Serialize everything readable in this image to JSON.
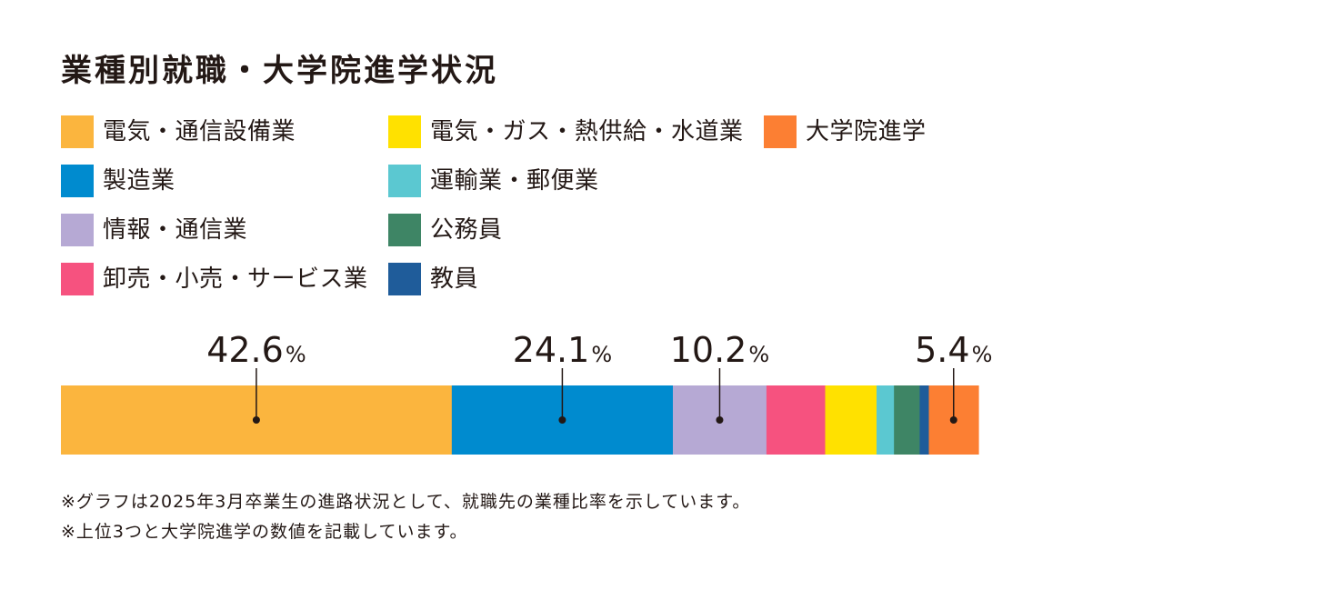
{
  "title": "業種別就職・大学院進学状況",
  "legend": [
    {
      "label": "電気・通信設備業",
      "color": "#FBB53E"
    },
    {
      "label": "製造業",
      "color": "#008BCF"
    },
    {
      "label": "情報・通信業",
      "color": "#B6A9D4"
    },
    {
      "label": "卸売・小売・サービス業",
      "color": "#F6527F"
    },
    {
      "label": "電気・ガス・熱供給・水道業",
      "color": "#FFE100"
    },
    {
      "label": "運輸業・郵便業",
      "color": "#5BC8D1"
    },
    {
      "label": "公務員",
      "color": "#3E8565"
    },
    {
      "label": "教員",
      "color": "#1F5C9A"
    },
    {
      "label": "大学院進学",
      "color": "#FC7F33"
    }
  ],
  "chart_data": {
    "type": "bar",
    "orientation": "horizontal-stacked",
    "title": "業種別就職・大学院進学状況",
    "categories": [
      "電気・通信設備業",
      "製造業",
      "情報・通信業",
      "卸売・小売・サービス業",
      "電気・ガス・熱供給・水道業",
      "運輸業・郵便業",
      "公務員",
      "教員",
      "大学院進学"
    ],
    "values": [
      42.6,
      24.1,
      10.2,
      6.4,
      5.6,
      1.9,
      2.8,
      1.0,
      5.4
    ],
    "colors": [
      "#FBB53E",
      "#008BCF",
      "#B6A9D4",
      "#F6527F",
      "#FFE100",
      "#5BC8D1",
      "#3E8565",
      "#1F5C9A",
      "#FC7F33"
    ],
    "labeled": [
      {
        "index": 0,
        "value": "42.6",
        "unit": "%"
      },
      {
        "index": 1,
        "value": "24.1",
        "unit": "%"
      },
      {
        "index": 2,
        "value": "10.2",
        "unit": "%"
      },
      {
        "index": 8,
        "value": "5.4",
        "unit": "%"
      }
    ],
    "xlim": [
      0,
      100
    ]
  },
  "notes": [
    "※グラフは2025年3月卒業生の進路状況として、就職先の業種比率を示しています。",
    "※上位3つと大学院進学の数値を記載しています。"
  ]
}
